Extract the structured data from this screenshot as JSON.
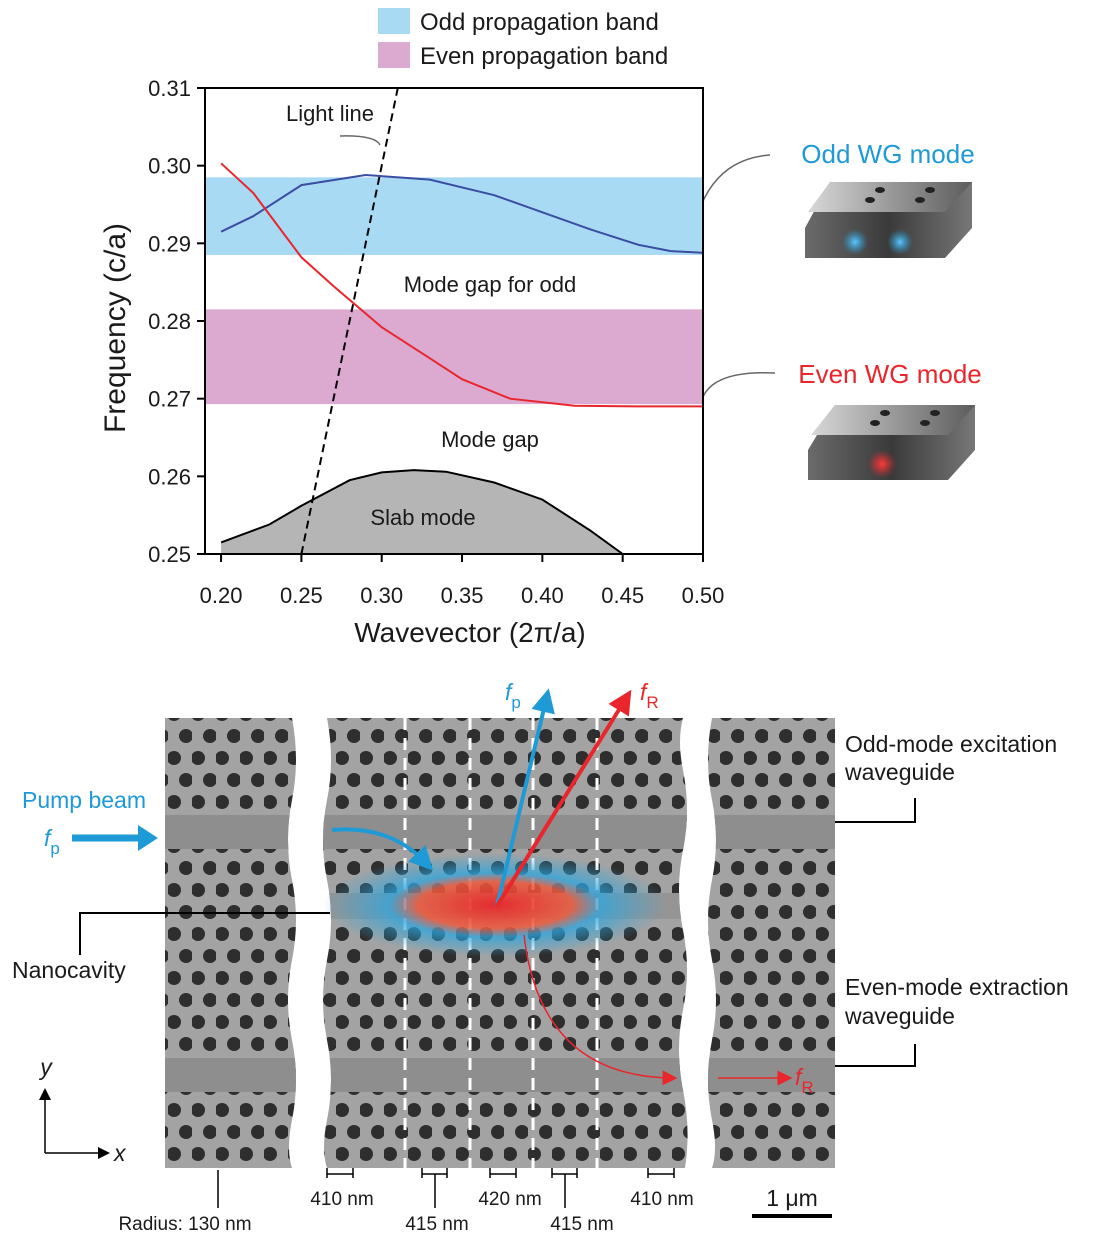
{
  "chart_data": {
    "type": "line",
    "xlabel": "Wavevector (2π/a)",
    "ylabel": "Frequency (c/a)",
    "xlim": [
      0.19,
      0.5
    ],
    "ylim": [
      0.25,
      0.31
    ],
    "xticks": [
      {
        "value": 0.2,
        "label": "0.20"
      },
      0.25,
      {
        "value": 0.3,
        "label": "0.30"
      },
      0.35,
      {
        "value": 0.4,
        "label": "0.40"
      },
      0.45,
      {
        "value": 0.5,
        "label": "0.50"
      }
    ],
    "yticks": [
      0.25,
      0.26,
      0.27,
      0.28,
      0.29,
      {
        "value": 0.3,
        "label": "0.30"
      },
      0.31
    ],
    "bands": [
      {
        "name": "Odd propagation band",
        "color": "#a9daf4",
        "range": [
          0.2885,
          0.2985
        ]
      },
      {
        "name": "Even propagation band",
        "color": "#dcaad0",
        "range": [
          0.2693,
          0.2815
        ]
      }
    ],
    "series": [
      {
        "name": "Odd WG mode",
        "color": "#3b4ea3",
        "x": [
          0.2,
          0.22,
          0.25,
          0.29,
          0.33,
          0.37,
          0.4,
          0.43,
          0.46,
          0.48,
          0.5
        ],
        "values": [
          0.2915,
          0.2935,
          0.2975,
          0.2988,
          0.2982,
          0.2962,
          0.294,
          0.2918,
          0.2898,
          0.289,
          0.2888
        ]
      },
      {
        "name": "Even WG mode",
        "color": "#e8262b",
        "x": [
          0.2,
          0.22,
          0.25,
          0.27,
          0.3,
          0.33,
          0.35,
          0.38,
          0.42,
          0.46,
          0.5
        ],
        "values": [
          0.3003,
          0.2965,
          0.2882,
          0.2845,
          0.2792,
          0.2752,
          0.2725,
          0.27,
          0.2691,
          0.269,
          0.269
        ]
      },
      {
        "name": "Slab mode",
        "color": "#000000",
        "fill": "#b5b5b5",
        "x": [
          0.2,
          0.23,
          0.25,
          0.28,
          0.3,
          0.32,
          0.34,
          0.37,
          0.4,
          0.43,
          0.45
        ],
        "values": [
          0.2515,
          0.2538,
          0.2562,
          0.2595,
          0.2605,
          0.2608,
          0.2606,
          0.2592,
          0.257,
          0.253,
          0.25
        ]
      },
      {
        "name": "Light line",
        "color": "#000000",
        "dashed": true,
        "x": [
          0.25,
          0.31
        ],
        "values": [
          0.25,
          0.31
        ]
      }
    ],
    "annotations": [
      "Mode gap for odd",
      "Mode gap"
    ]
  },
  "diagram": {
    "labels": {
      "pump_beam": "Pump beam",
      "pump_freq": {
        "base": "f",
        "sub": "p"
      },
      "raman_freq": {
        "base": "f",
        "sub": "R"
      },
      "odd_waveguide": [
        "Odd-mode excitation",
        "waveguide"
      ],
      "nanocavity": "Nanocavity",
      "even_waveguide": [
        "Even-mode extraction",
        "waveguide"
      ],
      "axis_y": "y",
      "axis_x": "x",
      "radius": "Radius: 130 nm",
      "scale_bar": "1 μm"
    },
    "spacings": [
      "410 nm",
      "415 nm",
      "420 nm",
      "415 nm",
      "410 nm"
    ]
  }
}
